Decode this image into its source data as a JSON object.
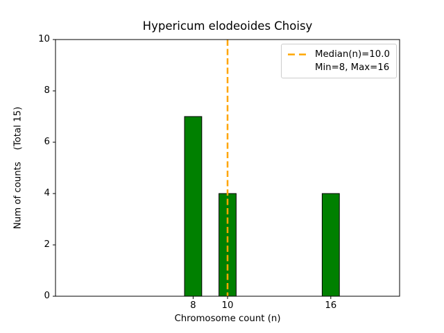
{
  "figure": {
    "background": "#ffffff",
    "text_color": "#000000"
  },
  "chart_data": {
    "type": "bar",
    "title": "Hypericum elodeoides Choisy",
    "xlabel": "Chromosome count (n)",
    "ylabel": "Num of counts    (Total 15)",
    "total": 15,
    "x": [
      8,
      10,
      16
    ],
    "values": [
      7,
      4,
      4
    ],
    "bar_width": 1.0,
    "bar_color": "#008000",
    "bar_edge_color": "#000000",
    "xlim": [
      0,
      20
    ],
    "ylim": [
      0,
      10
    ],
    "xticks": [
      8,
      10,
      16
    ],
    "yticks": [
      0,
      2,
      4,
      6,
      8,
      10
    ],
    "grid": false,
    "median_line": {
      "x": 10,
      "color": "#FFA500",
      "style": "dashed",
      "value_label": "Median(n)=10.0"
    },
    "legend": {
      "position": "upper right",
      "entries": [
        {
          "label": "Median(n)=10.0",
          "handle": "orange-dashed-line"
        },
        {
          "label": "Min=8, Max=16",
          "handle": "none"
        }
      ]
    }
  }
}
